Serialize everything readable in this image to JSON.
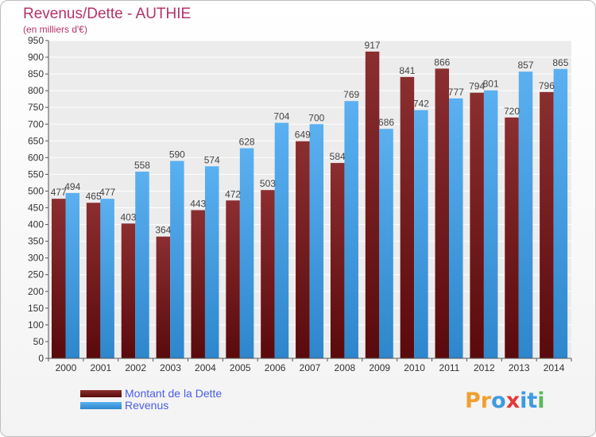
{
  "chart_data": {
    "type": "bar",
    "title": "Revenus/Dette - AUTHIE",
    "subtitle": "(en milliers d'€)",
    "categories": [
      "2000",
      "2001",
      "2002",
      "2003",
      "2004",
      "2005",
      "2006",
      "2007",
      "2008",
      "2009",
      "2010",
      "2011",
      "2012",
      "2013",
      "2014"
    ],
    "series": [
      {
        "name": "Montant de la Dette",
        "color": "#7a1f22",
        "values": [
          477,
          465,
          403,
          364,
          443,
          472,
          503,
          649,
          584,
          917,
          841,
          866,
          794,
          720,
          796
        ]
      },
      {
        "name": "Revenus",
        "color": "#3d9be2",
        "values": [
          494,
          477,
          558,
          590,
          574,
          628,
          704,
          700,
          769,
          686,
          742,
          777,
          801,
          857,
          865
        ]
      }
    ],
    "ylim": [
      0,
      950
    ],
    "ytick_step": 50,
    "grid": true,
    "legend_position": "bottom-left"
  },
  "logo": {
    "text": "Proxiti",
    "letter_colors": [
      "#f0a030",
      "#f0a030",
      "#3d9be2",
      "#e23a3a",
      "#3d9be2",
      "#3d9be2",
      "#5cb85c"
    ]
  }
}
